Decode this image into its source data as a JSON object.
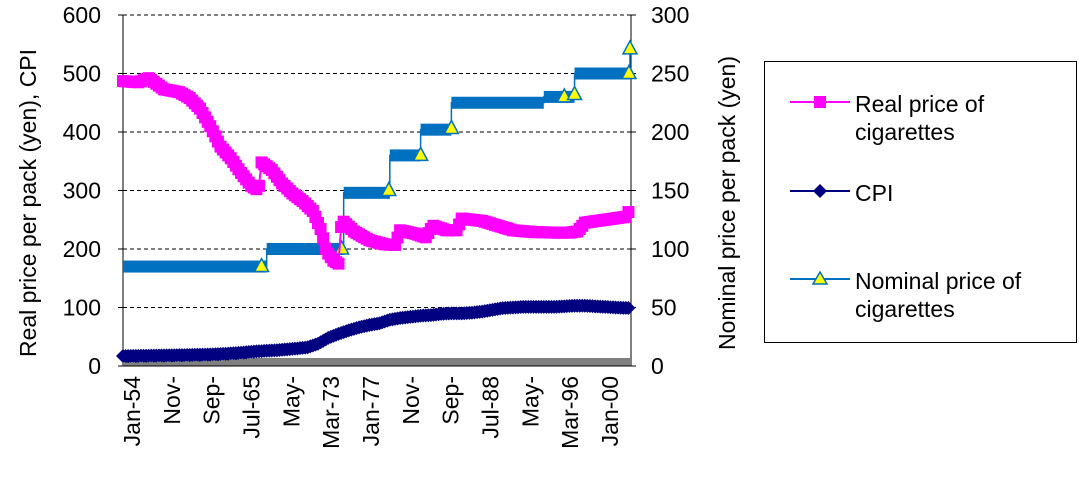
{
  "chart_data": {
    "type": "line",
    "title": "",
    "xlabel": "",
    "ylabel_left": "Real price per pack (yen), CPI",
    "ylabel_right": "Nominal price per pack (yen)",
    "ylim_left": [
      0,
      600
    ],
    "yticks_left": [
      "0",
      "100",
      "200",
      "300",
      "400",
      "500",
      "600"
    ],
    "ylim_right": [
      0,
      300
    ],
    "yticks_right": [
      "0",
      "50",
      "100",
      "150",
      "200",
      "250",
      "300"
    ],
    "x_tick_labels": [
      "Jan-54",
      "Nov-",
      "Sep-",
      "Jul-65",
      "May-",
      "Mar-73",
      "Jan-77",
      "Nov-",
      "Sep-",
      "Jul-88",
      "May-",
      "Mar-96",
      "Jan-00"
    ],
    "x_range_years": [
      1954.0,
      2003.5
    ],
    "grid": "horizontal dashed",
    "legend_position": "right",
    "series": [
      {
        "name": "Real price of cigarettes",
        "axis": "left",
        "color": "#ff00ff",
        "marker": "square",
        "points": [
          [
            1954.0,
            487
          ],
          [
            1955.5,
            485
          ],
          [
            1956.5,
            492
          ],
          [
            1958.0,
            473
          ],
          [
            1959.5,
            468
          ],
          [
            1960.5,
            458
          ],
          [
            1961.5,
            440
          ],
          [
            1962.5,
            410
          ],
          [
            1963.5,
            375
          ],
          [
            1964.5,
            355
          ],
          [
            1965.5,
            330
          ],
          [
            1966.5,
            308
          ],
          [
            1967.2,
            300
          ],
          [
            1967.5,
            348
          ],
          [
            1968.5,
            335
          ],
          [
            1969.5,
            312
          ],
          [
            1970.5,
            295
          ],
          [
            1971.5,
            282
          ],
          [
            1972.5,
            265
          ],
          [
            1973.3,
            232
          ],
          [
            1973.8,
            197
          ],
          [
            1974.5,
            180
          ],
          [
            1975.0,
            175
          ],
          [
            1975.3,
            250
          ],
          [
            1976.5,
            230
          ],
          [
            1978.0,
            215
          ],
          [
            1979.5,
            208
          ],
          [
            1980.5,
            207
          ],
          [
            1981.0,
            232
          ],
          [
            1982.5,
            226
          ],
          [
            1983.5,
            220
          ],
          [
            1984.2,
            240
          ],
          [
            1985.5,
            232
          ],
          [
            1986.5,
            232
          ],
          [
            1987.0,
            252
          ],
          [
            1989.0,
            248
          ],
          [
            1990.5,
            240
          ],
          [
            1992.0,
            232
          ],
          [
            1994.0,
            229
          ],
          [
            1996.0,
            228
          ],
          [
            1997.5,
            228
          ],
          [
            1998.3,
            230
          ],
          [
            1999.0,
            245
          ],
          [
            2001.0,
            250
          ],
          [
            2003.0,
            255
          ],
          [
            2003.4,
            268
          ]
        ]
      },
      {
        "name": "CPI",
        "axis": "left",
        "color": "#000080",
        "marker": "diamond",
        "points": [
          [
            1954.0,
            17
          ],
          [
            1958.0,
            18
          ],
          [
            1961.0,
            19
          ],
          [
            1963.0,
            20
          ],
          [
            1965.0,
            22
          ],
          [
            1967.0,
            25
          ],
          [
            1969.0,
            27
          ],
          [
            1971.0,
            30
          ],
          [
            1972.0,
            32
          ],
          [
            1973.0,
            38
          ],
          [
            1974.0,
            48
          ],
          [
            1975.0,
            55
          ],
          [
            1976.0,
            61
          ],
          [
            1977.0,
            66
          ],
          [
            1978.0,
            70
          ],
          [
            1979.0,
            73
          ],
          [
            1980.0,
            79
          ],
          [
            1981.0,
            82
          ],
          [
            1982.0,
            84
          ],
          [
            1983.0,
            86
          ],
          [
            1984.0,
            87
          ],
          [
            1985.0,
            89
          ],
          [
            1986.0,
            90
          ],
          [
            1987.0,
            90
          ],
          [
            1988.0,
            91
          ],
          [
            1989.0,
            93
          ],
          [
            1990.0,
            96
          ],
          [
            1991.0,
            99
          ],
          [
            1992.0,
            100
          ],
          [
            1993.0,
            101
          ],
          [
            1994.0,
            101
          ],
          [
            1995.0,
            101
          ],
          [
            1996.0,
            101
          ],
          [
            1997.0,
            102
          ],
          [
            1998.0,
            103
          ],
          [
            1999.0,
            103
          ],
          [
            2000.0,
            102
          ],
          [
            2001.0,
            101
          ],
          [
            2002.0,
            100
          ],
          [
            2003.4,
            99
          ]
        ]
      },
      {
        "name": "Nominal price of cigarettes",
        "axis": "right",
        "color": "#0070c0",
        "marker": "triangle",
        "marker_fill": "#ffff00",
        "steps": [
          [
            1954.0,
            85
          ],
          [
            1968.0,
            100
          ],
          [
            1975.5,
            148
          ],
          [
            1980.0,
            180
          ],
          [
            1983.0,
            202
          ],
          [
            1986.0,
            225
          ],
          [
            1995.0,
            230
          ],
          [
            1998.0,
            250
          ]
        ],
        "end_value": 270,
        "marked_points": [
          [
            1967.5,
            85
          ],
          [
            1975.3,
            100
          ],
          [
            1979.9,
            150
          ],
          [
            1983.0,
            180
          ],
          [
            1986.0,
            203
          ],
          [
            1997.0,
            230
          ],
          [
            1998.0,
            232
          ],
          [
            2003.3,
            250
          ],
          [
            2003.4,
            271
          ]
        ]
      }
    ]
  }
}
